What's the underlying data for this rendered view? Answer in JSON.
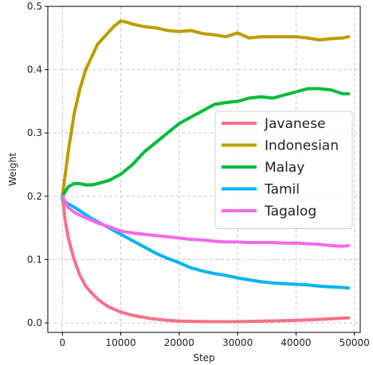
{
  "chart_data": {
    "type": "line",
    "title": "",
    "xlabel": "Step",
    "ylabel": "Weight",
    "xlim": [
      -2500,
      51000
    ],
    "ylim": [
      -0.015,
      0.5
    ],
    "xticks": [
      0,
      10000,
      20000,
      30000,
      40000,
      50000
    ],
    "yticks": [
      0.0,
      0.1,
      0.2,
      0.3,
      0.4,
      0.5
    ],
    "xtick_labels": [
      "0",
      "10000",
      "20000",
      "30000",
      "40000",
      "50000"
    ],
    "ytick_labels": [
      "0.0",
      "0.1",
      "0.2",
      "0.3",
      "0.4",
      "0.5"
    ],
    "grid": true,
    "legend_position": "center-right",
    "series": [
      {
        "name": "Javanese",
        "color": "#f77189",
        "x": [
          0,
          500,
          1000,
          2000,
          3000,
          4000,
          5000,
          6000,
          7000,
          8000,
          10000,
          12000,
          15000,
          18000,
          20000,
          25000,
          30000,
          35000,
          40000,
          45000,
          49000
        ],
        "y": [
          0.2,
          0.16,
          0.135,
          0.1,
          0.075,
          0.058,
          0.047,
          0.038,
          0.031,
          0.025,
          0.017,
          0.012,
          0.007,
          0.004,
          0.003,
          0.002,
          0.002,
          0.003,
          0.004,
          0.006,
          0.008
        ]
      },
      {
        "name": "Indonesian",
        "color": "#bb9d00",
        "x": [
          0,
          1000,
          2000,
          3000,
          4000,
          5000,
          6000,
          7000,
          8000,
          9000,
          10000,
          11000,
          12000,
          14000,
          16000,
          18000,
          20000,
          22000,
          24000,
          26000,
          28000,
          30000,
          32000,
          34000,
          36000,
          38000,
          40000,
          42000,
          44000,
          46000,
          48000,
          49000
        ],
        "y": [
          0.2,
          0.27,
          0.33,
          0.37,
          0.4,
          0.42,
          0.44,
          0.45,
          0.46,
          0.47,
          0.477,
          0.475,
          0.472,
          0.468,
          0.466,
          0.462,
          0.46,
          0.462,
          0.457,
          0.455,
          0.452,
          0.458,
          0.45,
          0.452,
          0.452,
          0.452,
          0.452,
          0.45,
          0.447,
          0.449,
          0.45,
          0.452
        ]
      },
      {
        "name": "Malay",
        "color": "#00bb38",
        "x": [
          0,
          1000,
          2000,
          3000,
          4000,
          5000,
          6000,
          8000,
          10000,
          12000,
          14000,
          16000,
          18000,
          20000,
          22000,
          24000,
          26000,
          28000,
          30000,
          32000,
          34000,
          36000,
          38000,
          40000,
          42000,
          44000,
          46000,
          48000,
          49000
        ],
        "y": [
          0.2,
          0.215,
          0.22,
          0.22,
          0.218,
          0.218,
          0.22,
          0.225,
          0.235,
          0.25,
          0.27,
          0.285,
          0.3,
          0.315,
          0.325,
          0.335,
          0.345,
          0.348,
          0.35,
          0.355,
          0.357,
          0.355,
          0.36,
          0.365,
          0.37,
          0.37,
          0.368,
          0.362,
          0.362
        ]
      },
      {
        "name": "Tamil",
        "color": "#00b5f5",
        "x": [
          0,
          1000,
          2000,
          3000,
          4000,
          5000,
          6000,
          8000,
          10000,
          12000,
          14000,
          16000,
          18000,
          20000,
          22000,
          24000,
          26000,
          28000,
          30000,
          32000,
          34000,
          36000,
          38000,
          40000,
          42000,
          44000,
          46000,
          48000,
          49000
        ],
        "y": [
          0.195,
          0.188,
          0.183,
          0.177,
          0.171,
          0.165,
          0.16,
          0.15,
          0.14,
          0.13,
          0.12,
          0.11,
          0.102,
          0.095,
          0.087,
          0.082,
          0.078,
          0.075,
          0.071,
          0.068,
          0.065,
          0.063,
          0.062,
          0.061,
          0.06,
          0.058,
          0.057,
          0.056,
          0.055
        ]
      },
      {
        "name": "Tagalog",
        "color": "#f369ec",
        "x": [
          0,
          1000,
          2000,
          3000,
          4000,
          5000,
          6000,
          8000,
          10000,
          12000,
          14000,
          16000,
          18000,
          20000,
          22000,
          24000,
          26000,
          28000,
          30000,
          32000,
          34000,
          36000,
          38000,
          40000,
          42000,
          44000,
          46000,
          48000,
          49000
        ],
        "y": [
          0.2,
          0.182,
          0.175,
          0.17,
          0.166,
          0.162,
          0.158,
          0.152,
          0.145,
          0.142,
          0.14,
          0.138,
          0.136,
          0.134,
          0.132,
          0.131,
          0.129,
          0.128,
          0.128,
          0.127,
          0.127,
          0.127,
          0.126,
          0.126,
          0.125,
          0.124,
          0.122,
          0.121,
          0.122
        ]
      }
    ]
  }
}
